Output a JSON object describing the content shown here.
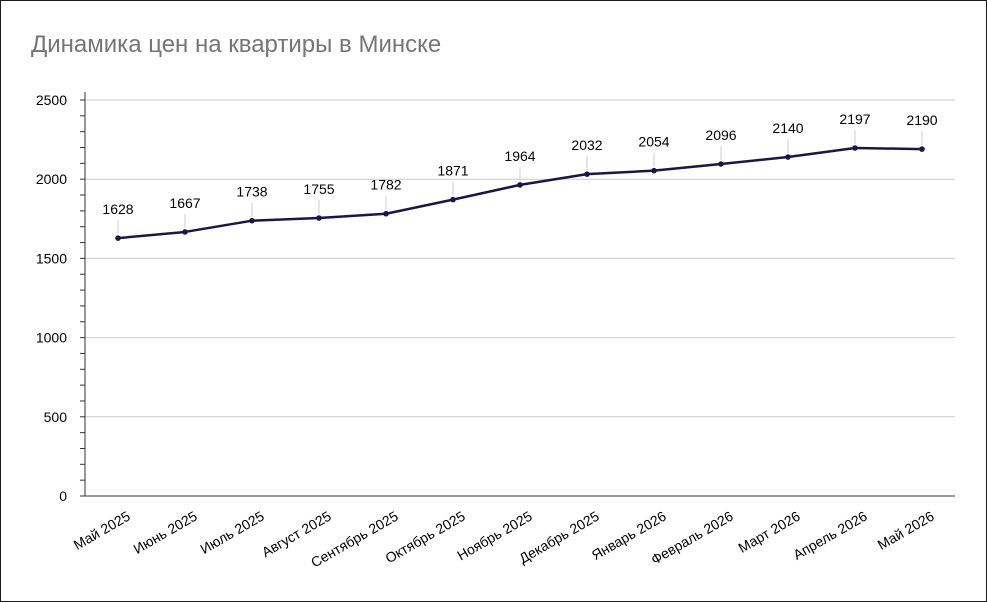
{
  "chart_data": {
    "type": "line",
    "title": "Динамика цен на квартиры в Минске",
    "xlabel": "",
    "ylabel": "",
    "categories": [
      "Май 2025",
      "Июнь 2025",
      "Июль 2025",
      "Август 2025",
      "Сентябрь 2025",
      "Октябрь 2025",
      "Ноябрь 2025",
      "Декабрь 2025",
      "Январь 2026",
      "Февраль 2026",
      "Март 2026",
      "Апрель 2026",
      "Май 2026"
    ],
    "series": [
      {
        "values": [
          1628,
          1667,
          1738,
          1755,
          1782,
          1871,
          1964,
          2032,
          2054,
          2096,
          2140,
          2197,
          2190
        ]
      }
    ],
    "ylim": [
      0,
      2500
    ],
    "yticks": [
      "0",
      "500",
      "1000",
      "1500",
      "2000",
      "2500"
    ],
    "grid": true,
    "legend": "none",
    "line_color": "#1c1645"
  }
}
